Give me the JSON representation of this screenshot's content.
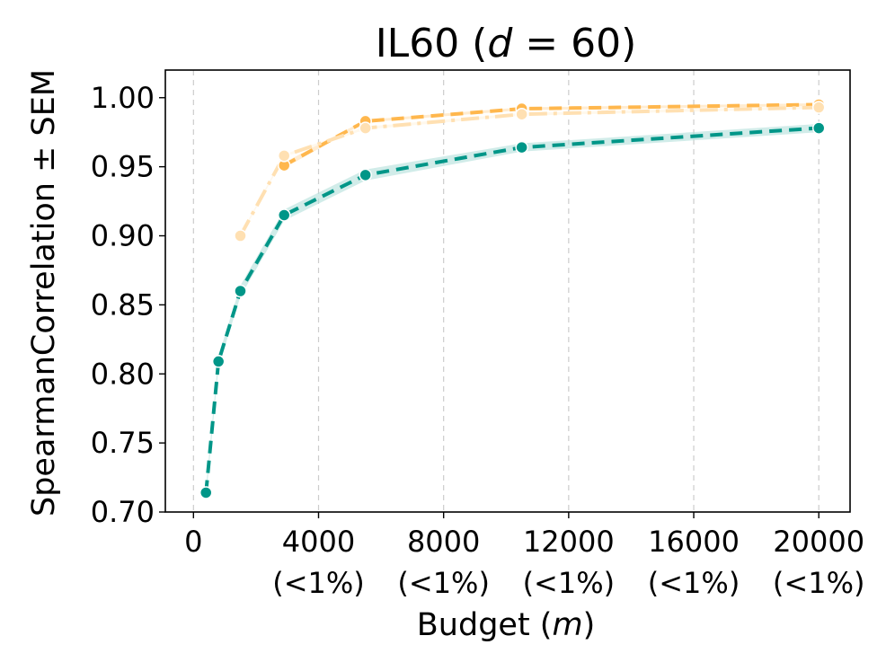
{
  "chart_data": {
    "type": "line",
    "title": "IL60 (d = 60)",
    "title_parts": {
      "prefix": "IL60 (",
      "var": "d",
      "rest": " = 60)"
    },
    "xlabel": "Budget (m)",
    "xlabel_parts": {
      "prefix": "Budget (",
      "var": "m",
      "suffix": ")"
    },
    "ylabel": "SpearmanCorrelation ± SEM",
    "xlim": [
      -900,
      21000
    ],
    "ylim": [
      0.7,
      1.02
    ],
    "grid": "x-dashed",
    "x_ticks": [
      {
        "value": 0,
        "label": "0",
        "sub": ""
      },
      {
        "value": 4000,
        "label": "4000",
        "sub": "(<1%)"
      },
      {
        "value": 8000,
        "label": "8000",
        "sub": "(<1%)"
      },
      {
        "value": 12000,
        "label": "12000",
        "sub": "(<1%)"
      },
      {
        "value": 16000,
        "label": "16000",
        "sub": "(<1%)"
      },
      {
        "value": 20000,
        "label": "20000",
        "sub": "(<1%)"
      }
    ],
    "y_ticks": [
      {
        "value": 0.7,
        "label": "0.70"
      },
      {
        "value": 0.75,
        "label": "0.75"
      },
      {
        "value": 0.8,
        "label": "0.80"
      },
      {
        "value": 0.85,
        "label": "0.85"
      },
      {
        "value": 0.9,
        "label": "0.90"
      },
      {
        "value": 0.95,
        "label": "0.95"
      },
      {
        "value": 1.0,
        "label": "1.00"
      }
    ],
    "series": [
      {
        "name": "teal-series",
        "color": "#009688",
        "band": "#b2dfdb",
        "dash": "14,8",
        "marker_fill": "#009688",
        "x": [
          400,
          800,
          1500,
          2900,
          5500,
          10500,
          20000
        ],
        "values": [
          0.714,
          0.809,
          0.86,
          0.915,
          0.944,
          0.964,
          0.978
        ],
        "sem": [
          0.004,
          0.004,
          0.004,
          0.004,
          0.004,
          0.003,
          0.003
        ]
      },
      {
        "name": "orange-series",
        "color": "#ffb74d",
        "band": "#ffe0b2",
        "dash": "14,8",
        "marker_fill": "#ffb74d",
        "x": [
          2900,
          5500,
          10500,
          20000
        ],
        "values": [
          0.951,
          0.983,
          0.992,
          0.995
        ],
        "sem": [
          0.002,
          0.001,
          0.001,
          0.001
        ]
      },
      {
        "name": "light-orange-series",
        "color": "#ffe0b2",
        "band": "#fff3e0",
        "dash": "20,7,4,7",
        "marker_fill": "#ffe0b2",
        "x": [
          1500,
          2900,
          5500,
          10500,
          20000
        ],
        "values": [
          0.9,
          0.958,
          0.978,
          0.988,
          0.993
        ],
        "sem": [
          0.001,
          0.001,
          0.001,
          0.001,
          0.001
        ]
      }
    ]
  }
}
